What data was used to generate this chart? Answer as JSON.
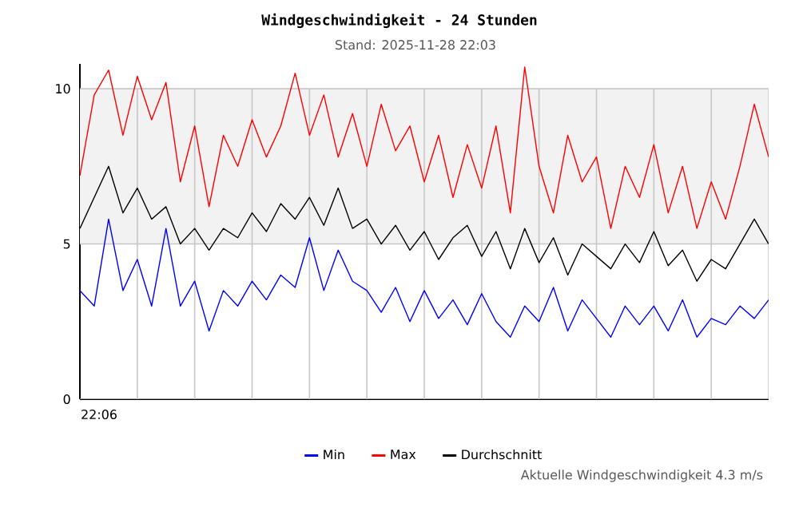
{
  "chart_data": {
    "type": "line",
    "title": "Windgeschwindigkeit - 24 Stunden",
    "subtitle": "Stand: 2025-11-28 22:03",
    "annotations": [
      "22:06",
      "Aktuelle Windgeschwindigkeit 4.3 m/s"
    ],
    "categories": [
      null,
      null,
      null,
      null,
      null,
      null,
      null,
      null,
      null,
      null,
      null,
      null,
      null,
      null,
      null,
      null,
      null,
      null,
      null,
      null,
      null,
      null,
      null,
      null,
      null,
      null,
      null,
      null,
      null,
      null,
      null,
      null,
      null,
      null,
      null,
      null,
      null,
      null,
      null,
      null,
      null,
      null,
      null,
      null,
      null,
      null,
      null,
      null,
      null
    ],
    "ylim": [
      0,
      10.8
    ],
    "yticks": [
      {
        "value": 0,
        "label": "0"
      },
      {
        "value": 5,
        "label": "5"
      },
      {
        "value": 10,
        "label": "10"
      }
    ],
    "grid": true,
    "legend": "bottom",
    "marker": "none",
    "line_style": "solid",
    "bands": [
      {
        "axis": "y",
        "from": 5,
        "to": 10,
        "color": "#f2f2f2"
      }
    ],
    "series": [
      {
        "name": "Min",
        "color": "#0000ff",
        "values": [
          3.5,
          3.0,
          5.8,
          3.5,
          4.5,
          3.0,
          5.5,
          3.0,
          3.8,
          2.2,
          3.5,
          3.0,
          3.8,
          3.2,
          4.0,
          3.6,
          5.2,
          3.5,
          4.8,
          3.8,
          3.5,
          2.8,
          3.6,
          2.5,
          3.5,
          2.6,
          3.2,
          2.4,
          3.4,
          2.5,
          2.0,
          3.0,
          2.5,
          3.6,
          2.2,
          3.2,
          2.6,
          2.0,
          3.0,
          2.4,
          3.0,
          2.2,
          3.2,
          2.0,
          2.6,
          2.4,
          3.0,
          2.6,
          3.2
        ]
      },
      {
        "name": "Max",
        "color": "#ff0000",
        "values": [
          7.2,
          9.8,
          10.6,
          8.5,
          10.4,
          9.0,
          10.2,
          7.0,
          8.8,
          6.2,
          8.5,
          7.5,
          9.0,
          7.8,
          8.8,
          10.5,
          8.5,
          9.8,
          7.8,
          9.2,
          7.5,
          9.5,
          8.0,
          8.8,
          7.0,
          8.5,
          6.5,
          8.2,
          6.8,
          8.8,
          6.0,
          10.7,
          7.5,
          6.0,
          8.5,
          7.0,
          7.8,
          5.5,
          7.5,
          6.5,
          8.2,
          6.0,
          7.5,
          5.5,
          7.0,
          5.8,
          7.5,
          9.5,
          7.8
        ]
      },
      {
        "name": "Durchschnitt",
        "color": "#000000",
        "values": [
          5.5,
          6.5,
          7.5,
          6.0,
          6.8,
          5.8,
          6.2,
          5.0,
          5.5,
          4.8,
          5.5,
          5.2,
          6.0,
          5.4,
          6.3,
          5.8,
          6.5,
          5.6,
          6.8,
          5.5,
          5.8,
          5.0,
          5.6,
          4.8,
          5.4,
          4.5,
          5.2,
          5.6,
          4.6,
          5.4,
          4.2,
          5.5,
          4.4,
          5.2,
          4.0,
          5.0,
          4.6,
          4.2,
          5.0,
          4.4,
          5.4,
          4.3,
          4.8,
          3.8,
          4.5,
          4.2,
          5.0,
          5.8,
          5.0
        ]
      }
    ]
  }
}
